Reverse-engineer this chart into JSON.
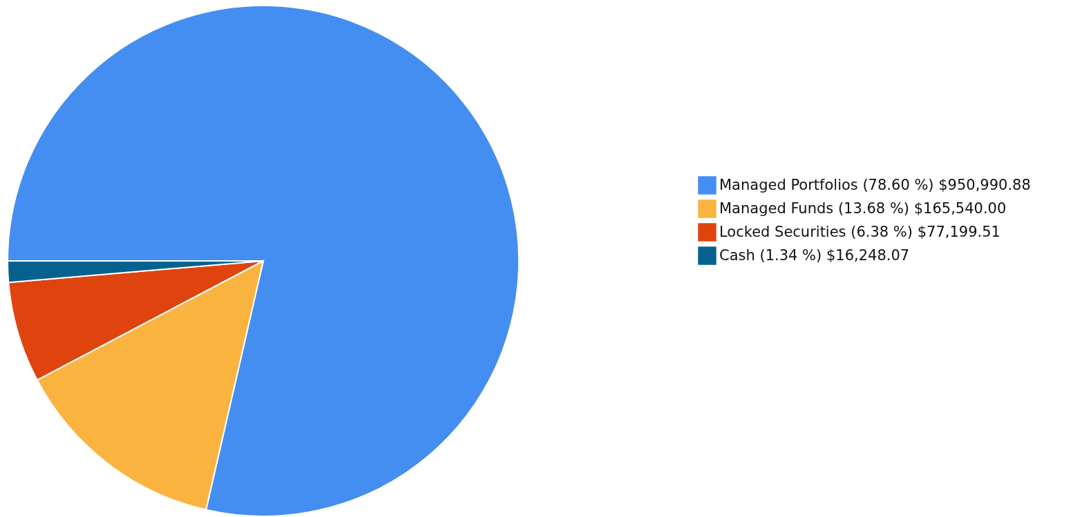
{
  "chart_data": {
    "type": "pie",
    "categories": [
      "Managed Portfolios (78.60 %) $950,990.88",
      "Managed Funds (13.68 %) $165,540.00",
      "Locked Securities (6.38 %) $77,199.51",
      "Cash (1.34 %) $16,248.07"
    ],
    "values": [
      950990.88,
      165540.0,
      77199.51,
      16248.07
    ],
    "colors": [
      "#448ef1",
      "#fbb340",
      "#e0440e",
      "#05628f"
    ],
    "legend": "right"
  }
}
